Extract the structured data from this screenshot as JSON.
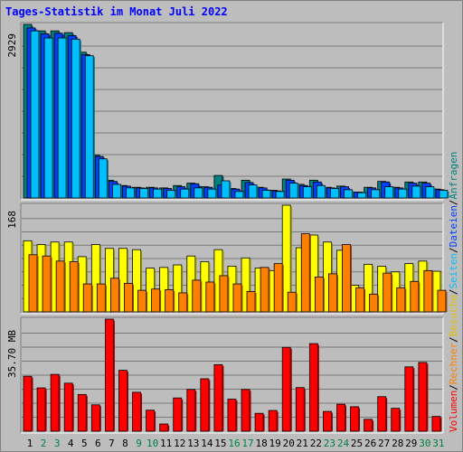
{
  "title": "Tages-Statistik im Monat Juli 2022",
  "chart_data": [
    {
      "type": "bar",
      "categories": [
        "1",
        "2",
        "3",
        "4",
        "5",
        "6",
        "7",
        "8",
        "9",
        "10",
        "11",
        "12",
        "13",
        "14",
        "15",
        "16",
        "17",
        "18",
        "19",
        "20",
        "21",
        "22",
        "23",
        "24",
        "25",
        "26",
        "27",
        "28",
        "29",
        "30",
        "31"
      ],
      "weekend_days": [
        "2",
        "3",
        "9",
        "10",
        "16",
        "17",
        "23",
        "24",
        "30",
        "31"
      ],
      "ylabel": "2929",
      "ylim": [
        0,
        2929
      ],
      "series": [
        {
          "name": "Anfragen",
          "color": "#008080",
          "values": [
            2929,
            2820,
            2820,
            2790,
            2460,
            720,
            300,
            210,
            180,
            180,
            170,
            210,
            250,
            190,
            380,
            160,
            300,
            180,
            130,
            320,
            230,
            300,
            180,
            200,
            100,
            180,
            280,
            180,
            270,
            270,
            150
          ]
        },
        {
          "name": "Dateien",
          "color": "#0040ff",
          "values": [
            2870,
            2770,
            2780,
            2740,
            2420,
            700,
            280,
            200,
            170,
            170,
            160,
            190,
            240,
            180,
            220,
            150,
            260,
            170,
            120,
            300,
            210,
            270,
            170,
            190,
            100,
            170,
            270,
            170,
            250,
            250,
            140
          ]
        },
        {
          "name": "Seiten",
          "color": "#00bfff",
          "values": [
            2820,
            2700,
            2700,
            2680,
            2400,
            660,
            230,
            170,
            160,
            150,
            130,
            150,
            170,
            150,
            290,
            110,
            220,
            130,
            110,
            250,
            190,
            210,
            160,
            140,
            90,
            140,
            190,
            150,
            200,
            190,
            130
          ]
        }
      ]
    },
    {
      "type": "bar",
      "categories": [
        "1",
        "2",
        "3",
        "4",
        "5",
        "6",
        "7",
        "8",
        "9",
        "10",
        "11",
        "12",
        "13",
        "14",
        "15",
        "16",
        "17",
        "18",
        "19",
        "20",
        "21",
        "22",
        "23",
        "24",
        "25",
        "26",
        "27",
        "28",
        "29",
        "30",
        "31"
      ],
      "ylabel": "168",
      "ylim": [
        0,
        168
      ],
      "series": [
        {
          "name": "Besuche",
          "color": "#ffff00",
          "values": [
            112,
            106,
            110,
            110,
            87,
            106,
            100,
            100,
            98,
            69,
            70,
            74,
            88,
            79,
            98,
            72,
            85,
            69,
            65,
            168,
            101,
            121,
            110,
            97,
            42,
            75,
            72,
            63,
            76,
            80,
            64
          ]
        },
        {
          "name": "Rechner",
          "color": "#ff8000",
          "values": [
            90,
            88,
            80,
            79,
            44,
            44,
            53,
            45,
            34,
            36,
            35,
            30,
            50,
            47,
            57,
            44,
            32,
            70,
            76,
            31,
            123,
            55,
            60,
            106,
            38,
            28,
            61,
            38,
            48,
            65,
            34
          ]
        }
      ]
    },
    {
      "type": "bar",
      "categories": [
        "1",
        "2",
        "3",
        "4",
        "5",
        "6",
        "7",
        "8",
        "9",
        "10",
        "11",
        "12",
        "13",
        "14",
        "15",
        "16",
        "17",
        "18",
        "19",
        "20",
        "21",
        "22",
        "23",
        "24",
        "25",
        "26",
        "27",
        "28",
        "29",
        "30",
        "31"
      ],
      "ylabel": "35.70 MB",
      "ylim": [
        0,
        35.7
      ],
      "series": [
        {
          "name": "Volumen",
          "color": "#ff0000",
          "values": [
            17.5,
            13.8,
            18.1,
            15.3,
            11.7,
            8.4,
            35.7,
            19.4,
            12.4,
            6.7,
            2.3,
            10.6,
            13.3,
            16.7,
            21.2,
            10.2,
            13.3,
            5.7,
            6.6,
            26.7,
            13.9,
            27.9,
            6.3,
            8.6,
            7.8,
            3.8,
            11.0,
            7.3,
            20.5,
            21.9,
            4.7
          ]
        }
      ]
    }
  ]
}
